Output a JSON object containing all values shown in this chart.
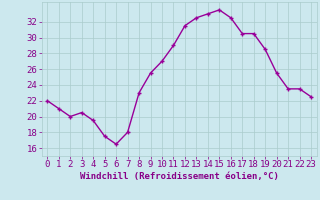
{
  "x": [
    0,
    1,
    2,
    3,
    4,
    5,
    6,
    7,
    8,
    9,
    10,
    11,
    12,
    13,
    14,
    15,
    16,
    17,
    18,
    19,
    20,
    21,
    22,
    23
  ],
  "y": [
    22,
    21,
    20,
    20.5,
    19.5,
    17.5,
    16.5,
    18,
    23,
    25.5,
    27,
    29,
    31.5,
    32.5,
    33,
    33.5,
    32.5,
    30.5,
    30.5,
    28.5,
    25.5,
    23.5,
    23.5,
    22.5
  ],
  "line_color": "#990099",
  "marker": "+",
  "marker_size": 3,
  "marker_linewidth": 1.0,
  "background_color": "#cce8ee",
  "grid_color": "#aacccc",
  "tick_color": "#880088",
  "label_color": "#880088",
  "xlabel": "Windchill (Refroidissement éolien,°C)",
  "xlabel_fontsize": 6.5,
  "ytick_labels": [
    "16",
    "18",
    "20",
    "22",
    "24",
    "26",
    "28",
    "30",
    "32"
  ],
  "yticks": [
    16,
    18,
    20,
    22,
    24,
    26,
    28,
    30,
    32
  ],
  "xtick_labels": [
    "0",
    "1",
    "2",
    "3",
    "4",
    "5",
    "6",
    "7",
    "8",
    "9",
    "10",
    "11",
    "12",
    "13",
    "14",
    "15",
    "16",
    "17",
    "18",
    "19",
    "20",
    "21",
    "22",
    "23"
  ],
  "ylim": [
    15.0,
    34.5
  ],
  "xlim": [
    -0.5,
    23.5
  ],
  "tick_fontsize": 6.5,
  "linewidth": 1.0
}
